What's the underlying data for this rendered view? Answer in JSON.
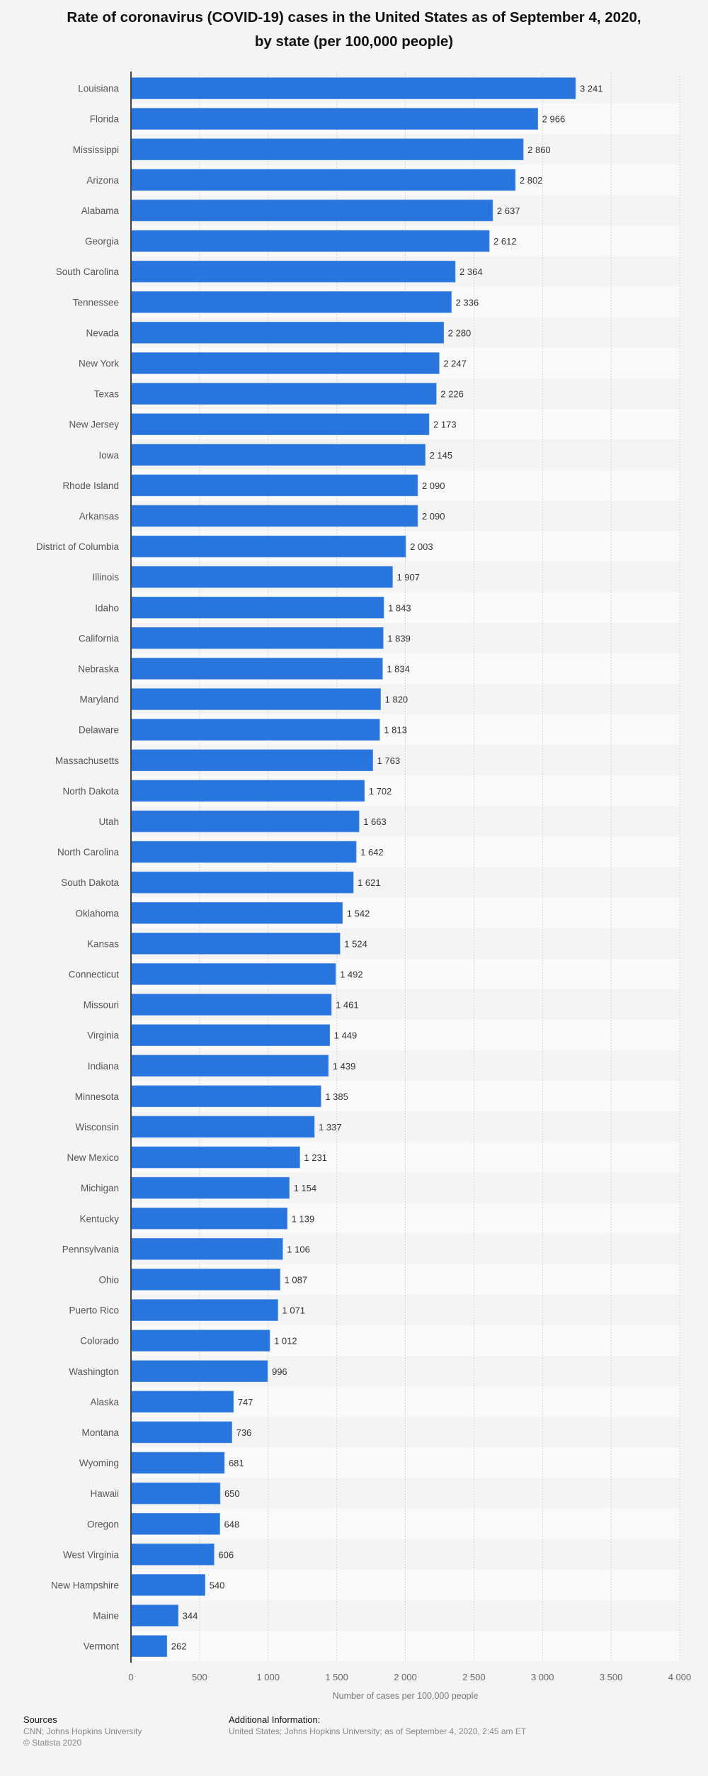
{
  "title_line1": "Rate of coronavirus (COVID-19) cases in the United States as of September 4, 2020,",
  "title_line2": "by state (per 100,000 people)",
  "chart_data": {
    "type": "bar",
    "orientation": "horizontal",
    "title": "Rate of coronavirus (COVID-19) cases in the United States as of September 4, 2020, by state (per 100,000 people)",
    "xlabel": "Number of cases per 100,000 people",
    "ylabel": "",
    "xlim": [
      0,
      4000
    ],
    "xticks": [
      0,
      500,
      1000,
      1500,
      2000,
      2500,
      3000,
      3500,
      4000
    ],
    "xtick_labels": [
      "0",
      "500",
      "1 000",
      "1 500",
      "2 000",
      "2 500",
      "3 000",
      "3 500",
      "4 000"
    ],
    "grid": true,
    "bar_color": "#2876dd",
    "categories": [
      "Louisiana",
      "Florida",
      "Mississippi",
      "Arizona",
      "Alabama",
      "Georgia",
      "South Carolina",
      "Tennessee",
      "Nevada",
      "New York",
      "Texas",
      "New Jersey",
      "Iowa",
      "Rhode Island",
      "Arkansas",
      "District of Columbia",
      "Illinois",
      "Idaho",
      "California",
      "Nebraska",
      "Maryland",
      "Delaware",
      "Massachusetts",
      "North Dakota",
      "Utah",
      "North Carolina",
      "South Dakota",
      "Oklahoma",
      "Kansas",
      "Connecticut",
      "Missouri",
      "Virginia",
      "Indiana",
      "Minnesota",
      "Wisconsin",
      "New Mexico",
      "Michigan",
      "Kentucky",
      "Pennsylvania",
      "Ohio",
      "Puerto Rico",
      "Colorado",
      "Washington",
      "Alaska",
      "Montana",
      "Wyoming",
      "Hawaii",
      "Oregon",
      "West Virginia",
      "New Hampshire",
      "Maine",
      "Vermont"
    ],
    "values": [
      3241,
      2966,
      2860,
      2802,
      2637,
      2612,
      2364,
      2336,
      2280,
      2247,
      2226,
      2173,
      2145,
      2090,
      2090,
      2003,
      1907,
      1843,
      1839,
      1834,
      1820,
      1813,
      1763,
      1702,
      1663,
      1642,
      1621,
      1542,
      1524,
      1492,
      1461,
      1449,
      1439,
      1385,
      1337,
      1231,
      1154,
      1139,
      1106,
      1087,
      1071,
      1012,
      996,
      747,
      736,
      681,
      650,
      648,
      606,
      540,
      344,
      262
    ],
    "value_labels": [
      "3 241",
      "2 966",
      "2 860",
      "2 802",
      "2 637",
      "2 612",
      "2 364",
      "2 336",
      "2 280",
      "2 247",
      "2 226",
      "2 173",
      "2 145",
      "2 090",
      "2 090",
      "2 003",
      "1 907",
      "1 843",
      "1 839",
      "1 834",
      "1 820",
      "1 813",
      "1 763",
      "1 702",
      "1 663",
      "1 642",
      "1 621",
      "1 542",
      "1 524",
      "1 492",
      "1 461",
      "1 449",
      "1 439",
      "1 385",
      "1 337",
      "1 231",
      "1 154",
      "1 139",
      "1 106",
      "1 087",
      "1 071",
      "1 012",
      "996",
      "747",
      "736",
      "681",
      "650",
      "648",
      "606",
      "540",
      "344",
      "262"
    ]
  },
  "footer": {
    "sources_heading": "Sources",
    "sources_text": "CNN; Johns Hopkins University",
    "copyright": "© Statista 2020",
    "additional_heading": "Additional Information:",
    "additional_text": "United States; Johns Hopkins University; as of September 4, 2020, 2:45 am ET"
  }
}
